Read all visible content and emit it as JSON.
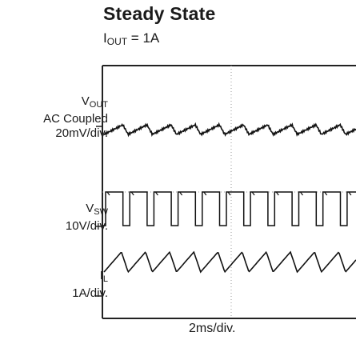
{
  "title": "Steady State",
  "subtitle": {
    "prefix": "I",
    "sub": "OUT",
    "suffix": " = 1A"
  },
  "xlabel": "2ms/div.",
  "channels": [
    {
      "symbol": "V",
      "sub": "OUT",
      "lines": [
        "AC Coupled",
        "20mV/div."
      ]
    },
    {
      "symbol": "V",
      "sub": "SW",
      "lines": [
        "10V/div."
      ]
    },
    {
      "symbol": "I",
      "sub": "L",
      "lines": [
        "1A/div."
      ]
    }
  ],
  "chart_data": {
    "type": "line",
    "title": "Steady State",
    "subtitle": "IOUT = 1A",
    "xlabel": "2ms/div.",
    "x_divisions_visible": 6.3,
    "grid": "dotted center lines",
    "series": [
      {
        "name": "VOUT",
        "scale": "20mV/div.",
        "coupling": "AC Coupled",
        "waveform": "sawtooth ripple",
        "cycles_visible": 10.5
      },
      {
        "name": "VSW",
        "scale": "10V/div.",
        "waveform": "square",
        "cycles_visible": 10.5,
        "duty_high": 0.72
      },
      {
        "name": "IL",
        "scale": "1A/div.",
        "waveform": "triangle",
        "cycles_visible": 10.5
      }
    ]
  }
}
